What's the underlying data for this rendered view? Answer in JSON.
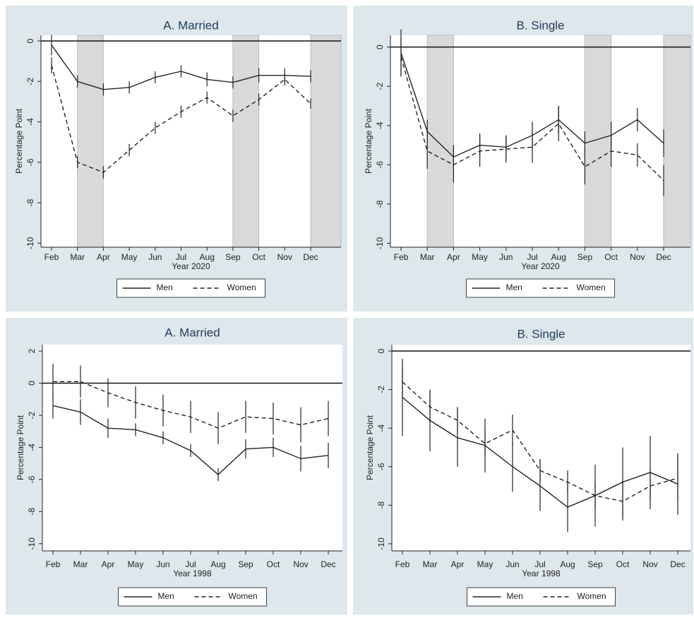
{
  "chart_data": [
    {
      "type": "line",
      "title": "A. Married",
      "xlabel": "Year 2020",
      "ylabel": "Percentage Point",
      "categories": [
        "Feb",
        "Mar",
        "Apr",
        "May",
        "Jun",
        "Jul",
        "Aug",
        "Sep",
        "Oct",
        "Nov",
        "Dec"
      ],
      "series": [
        {
          "name": "Men",
          "color": "#222222",
          "linestyle": "solid",
          "values": [
            -0.2,
            -2.0,
            -2.4,
            -2.3,
            -1.8,
            -1.5,
            -1.9,
            -2.05,
            -1.7,
            -1.7,
            -1.75
          ],
          "errors": [
            0.5,
            0.3,
            0.3,
            0.3,
            0.3,
            0.3,
            0.35,
            0.3,
            0.35,
            0.35,
            0.3
          ]
        },
        {
          "name": "Women",
          "color": "#222222",
          "linestyle": "dashed",
          "values": [
            -1.2,
            -6.0,
            -6.5,
            -5.4,
            -4.3,
            -3.5,
            -2.8,
            -3.7,
            -2.9,
            -1.9,
            -3.1
          ],
          "errors": [
            0.4,
            0.3,
            0.3,
            0.3,
            0.3,
            0.3,
            0.3,
            0.3,
            0.3,
            0.3,
            0.25
          ]
        }
      ],
      "ylim": [
        -10.2,
        0.28
      ],
      "yticks": [
        0,
        -2,
        -4,
        -6,
        -8,
        -10
      ],
      "zero_line": true,
      "shaded_spans": [
        [
          "Mar",
          "Apr"
        ],
        [
          "Sep",
          "Oct"
        ],
        [
          "Dec"
        ]
      ],
      "legend": "bottom"
    },
    {
      "type": "line",
      "title": "B. Single",
      "xlabel": "Year 2020",
      "ylabel": "Percentage Point",
      "categories": [
        "Feb",
        "Mar",
        "Apr",
        "May",
        "Jun",
        "Jul",
        "Aug",
        "Sep",
        "Oct",
        "Nov",
        "Dec"
      ],
      "series": [
        {
          "name": "Men",
          "color": "#222222",
          "linestyle": "solid",
          "values": [
            -0.3,
            -4.3,
            -5.6,
            -5.0,
            -5.1,
            -4.5,
            -3.7,
            -4.9,
            -4.5,
            -3.7,
            -4.9
          ],
          "errors": [
            1.2,
            0.6,
            0.6,
            0.6,
            0.6,
            0.7,
            0.7,
            0.6,
            0.7,
            0.6,
            0.7
          ]
        },
        {
          "name": "Women",
          "color": "#222222",
          "linestyle": "dashed",
          "values": [
            -0.5,
            -5.3,
            -6.0,
            -5.3,
            -5.2,
            -5.1,
            -3.9,
            -6.1,
            -5.3,
            -5.5,
            -6.8
          ],
          "errors": [
            1.0,
            0.9,
            0.9,
            0.8,
            0.7,
            0.8,
            0.9,
            0.9,
            0.8,
            0.6,
            0.8
          ]
        }
      ],
      "ylim": [
        -10.2,
        0.6
      ],
      "yticks": [
        0,
        -2,
        -4,
        -6,
        -8,
        -10
      ],
      "zero_line": true,
      "shaded_spans": [
        [
          "Mar",
          "Apr"
        ],
        [
          "Sep",
          "Oct"
        ],
        [
          "Dec"
        ]
      ],
      "legend": "bottom"
    },
    {
      "type": "line",
      "title": "A. Married",
      "xlabel": "Year 1998",
      "ylabel": "Percentage Point",
      "categories": [
        "Feb",
        "Mar",
        "Apr",
        "May",
        "Jun",
        "Jul",
        "Aug",
        "Sep",
        "Oct",
        "Nov",
        "Dec"
      ],
      "series": [
        {
          "name": "Men",
          "color": "#222222",
          "linestyle": "solid",
          "values": [
            -1.4,
            -1.8,
            -2.8,
            -2.9,
            -3.4,
            -4.2,
            -5.7,
            -4.1,
            -4.0,
            -4.7,
            -4.5
          ],
          "errors": [
            0.8,
            0.8,
            0.6,
            0.4,
            0.4,
            0.4,
            0.4,
            0.6,
            0.6,
            0.8,
            0.8
          ]
        },
        {
          "name": "Women",
          "color": "#222222",
          "linestyle": "dashed",
          "values": [
            0.1,
            0.1,
            -0.6,
            -1.2,
            -1.7,
            -2.1,
            -2.8,
            -2.1,
            -2.2,
            -2.6,
            -2.2
          ],
          "errors": [
            1.1,
            1.0,
            0.9,
            1.0,
            1.0,
            1.0,
            1.0,
            1.0,
            1.0,
            1.1,
            1.1
          ]
        }
      ],
      "ylim": [
        -10.45,
        2.4
      ],
      "yticks": [
        2,
        0,
        -2,
        -4,
        -6,
        -8,
        -10
      ],
      "zero_line": true,
      "shaded_spans": [],
      "legend": "bottom"
    },
    {
      "type": "line",
      "title": "B. Single",
      "xlabel": "Year 1998",
      "ylabel": "Percentage Point",
      "categories": [
        "Feb",
        "Mar",
        "Apr",
        "May",
        "Jun",
        "Jul",
        "Aug",
        "Sep",
        "Oct",
        "Nov",
        "Dec"
      ],
      "series": [
        {
          "name": "Men",
          "color": "#222222",
          "linestyle": "solid",
          "values": [
            -2.4,
            -3.6,
            -4.5,
            -4.9,
            -6.0,
            -7.0,
            -8.1,
            -7.5,
            -6.8,
            -6.3,
            -6.9
          ],
          "errors": [
            2.0,
            1.6,
            1.5,
            1.4,
            1.3,
            1.3,
            1.3,
            1.6,
            1.8,
            1.9,
            1.6
          ]
        },
        {
          "name": "Women",
          "color": "#222222",
          "linestyle": "dashed",
          "values": [
            -1.6,
            -2.9,
            -3.6,
            -4.8,
            -4.1,
            -6.2,
            -6.8,
            -7.5,
            -7.8,
            -7.0,
            -6.6
          ],
          "errors": [
            0.8,
            0.8,
            0.7,
            0.7,
            0.8,
            0.6,
            0.6,
            0.7,
            1.0,
            0.8,
            1.2
          ]
        }
      ],
      "ylim": [
        -10.37,
        0.33
      ],
      "yticks": [
        0,
        -2,
        -4,
        -6,
        -8,
        -10
      ],
      "zero_line": true,
      "shaded_spans": [],
      "legend": "bottom"
    }
  ]
}
